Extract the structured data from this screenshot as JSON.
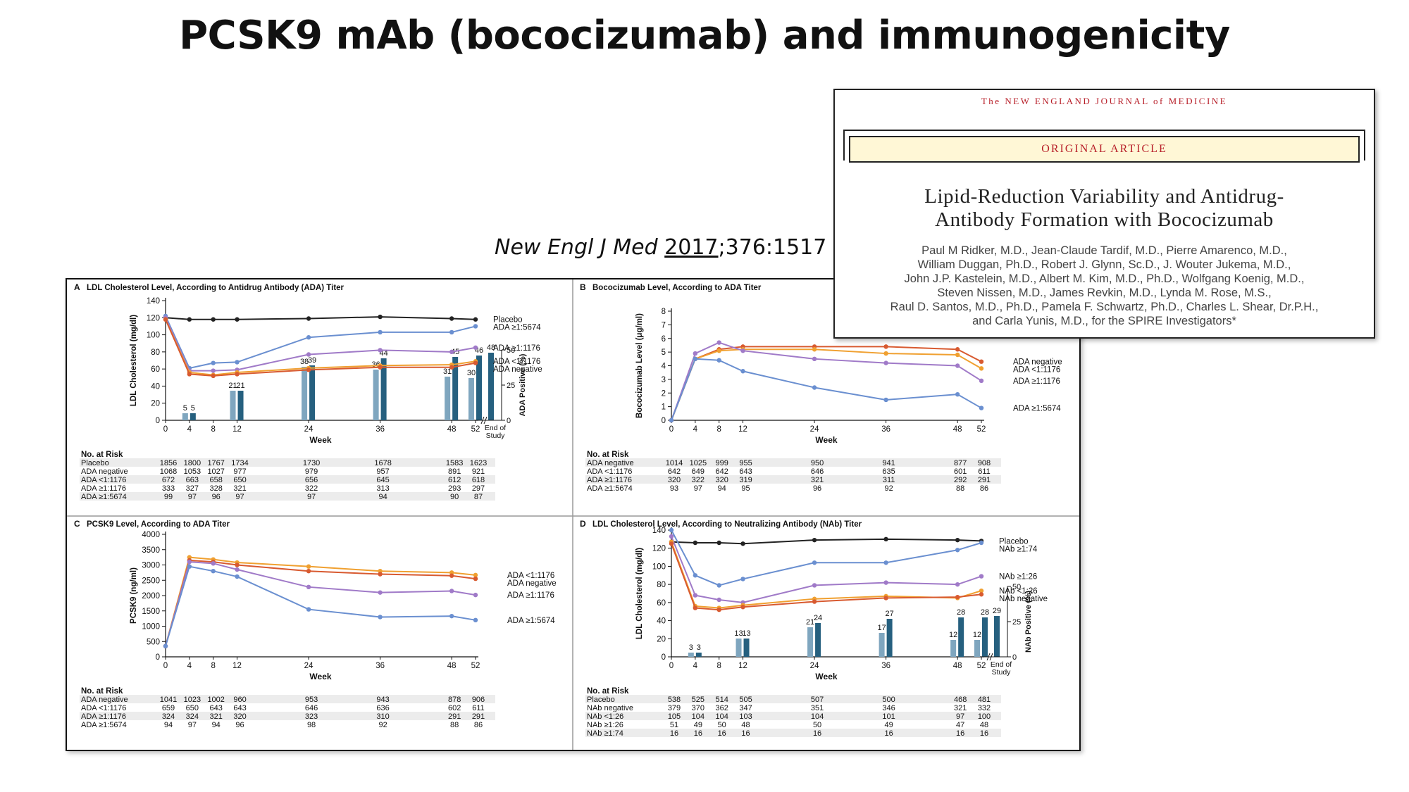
{
  "slide": {
    "title": "PCSK9 mAb (bococizumab) and immunogenicity",
    "citation_journal": "New Engl J Med",
    "citation_year": "2017",
    "citation_rest": ";376:1517"
  },
  "paper": {
    "journal": "The NEW ENGLAND JOURNAL of MEDICINE",
    "section": "ORIGINAL ARTICLE",
    "title_line1": "Lipid-Reduction Variability and Antidrug-",
    "title_line2": "Antibody Formation with Bococizumab",
    "authors": [
      "Paul M Ridker, M.D., Jean-Claude Tardif, M.D., Pierre Amarenco, M.D.,",
      "William Duggan, Ph.D., Robert J. Glynn, Sc.D., J. Wouter Jukema, M.D.,",
      "John J.P. Kastelein, M.D., Albert M. Kim, M.D., Ph.D., Wolfgang Koenig, M.D.,",
      "Steven Nissen, M.D., James Revkin, M.D., Lynda M. Rose, M.S.,",
      "Raul D. Santos, M.D., Ph.D., Pamela F. Schwartz, Ph.D., Charles L. Shear, Dr.P.H.,",
      "and Carla Yunis, M.D., for the SPIRE Investigators*"
    ]
  },
  "colors": {
    "black": "#222222",
    "blue": "#6a8fd0",
    "purple": "#a07ac8",
    "orange": "#f0a030",
    "red": "#d85a30",
    "bar_light": "#7fa6bf",
    "bar_dark": "#26607f"
  },
  "chart_data": [
    {
      "id": "A",
      "type": "line",
      "title": "LDL Cholesterol Level, According to Antidrug Antibody (ADA) Titer",
      "ylabel": "LDL Cholesterol (mg/dl)",
      "xlabel": "Week",
      "ylim": [
        0,
        140
      ],
      "yticks": [
        0,
        20,
        40,
        60,
        80,
        100,
        120,
        140
      ],
      "xticks": [
        "0",
        "4",
        "8",
        "12",
        "24",
        "36",
        "48",
        "52"
      ],
      "x": [
        0,
        4,
        8,
        12,
        24,
        36,
        48,
        52
      ],
      "series": [
        {
          "name": "Placebo",
          "color": "black",
          "values": [
            120,
            118,
            118,
            118,
            119,
            121,
            119,
            118
          ]
        },
        {
          "name": "ADA ≥1:5674",
          "color": "blue",
          "values": [
            122,
            61,
            67,
            68,
            97,
            103,
            103,
            110
          ]
        },
        {
          "name": "ADA ≥1:1176",
          "color": "purple",
          "values": [
            120,
            58,
            58,
            59,
            77,
            82,
            80,
            85
          ]
        },
        {
          "name": "ADA <1:1176",
          "color": "orange",
          "values": [
            118,
            56,
            53,
            56,
            61,
            64,
            65,
            69
          ]
        },
        {
          "name": "ADA negative",
          "color": "red",
          "values": [
            118,
            54,
            52,
            54,
            59,
            62,
            62,
            67
          ]
        }
      ],
      "bars": {
        "ylabel": "ADA Positive (%)",
        "ylim": [
          0,
          50
        ],
        "yticks": [
          0,
          25,
          50
        ],
        "weeks": [
          4,
          12,
          24,
          36,
          48,
          52
        ],
        "light": [
          5,
          21,
          38,
          36,
          31,
          30
        ],
        "dark": [
          5,
          21,
          39,
          44,
          45,
          46
        ],
        "end_of_study": 48,
        "end_label": "End of Study"
      },
      "risk": {
        "header": "No. at Risk",
        "rows": [
          {
            "label": "Placebo",
            "values": [
              "1856",
              "1800",
              "1767",
              "1734",
              "1730",
              "1678",
              "1583",
              "1623"
            ]
          },
          {
            "label": "ADA negative",
            "values": [
              "1068",
              "1053",
              "1027",
              "977",
              "979",
              "957",
              "891",
              "921"
            ]
          },
          {
            "label": "ADA <1:1176",
            "values": [
              "672",
              "663",
              "658",
              "650",
              "656",
              "645",
              "612",
              "618"
            ]
          },
          {
            "label": "ADA ≥1:1176",
            "values": [
              "333",
              "327",
              "328",
              "321",
              "322",
              "313",
              "293",
              "297"
            ]
          },
          {
            "label": "ADA ≥1:5674",
            "values": [
              "99",
              "97",
              "96",
              "97",
              "97",
              "94",
              "90",
              "87"
            ]
          }
        ]
      }
    },
    {
      "id": "B",
      "type": "line",
      "title": "Bococizumab Level, According to ADA Titer",
      "ylabel": "Bococizumab Level (μg/ml)",
      "xlabel": "Week",
      "ylim": [
        0,
        8
      ],
      "yticks": [
        0,
        1,
        2,
        3,
        4,
        5,
        6,
        7,
        8
      ],
      "xticks": [
        "0",
        "4",
        "8",
        "12",
        "24",
        "36",
        "48",
        "52"
      ],
      "x": [
        0,
        4,
        8,
        12,
        24,
        36,
        48,
        52
      ],
      "series": [
        {
          "name": "ADA negative",
          "color": "red",
          "values": [
            0,
            4.5,
            5.2,
            5.4,
            5.4,
            5.4,
            5.2,
            4.3
          ]
        },
        {
          "name": "ADA <1:1176",
          "color": "orange",
          "values": [
            0,
            4.5,
            5.1,
            5.2,
            5.2,
            4.9,
            4.8,
            3.8
          ]
        },
        {
          "name": "ADA ≥1:1176",
          "color": "purple",
          "values": [
            0,
            4.9,
            5.7,
            5.1,
            4.5,
            4.2,
            4.0,
            2.9
          ]
        },
        {
          "name": "ADA ≥1:5674",
          "color": "blue",
          "values": [
            0,
            4.5,
            4.4,
            3.6,
            2.4,
            1.5,
            1.9,
            0.9
          ]
        }
      ],
      "risk": {
        "header": "No. at Risk",
        "rows": [
          {
            "label": "ADA negative",
            "values": [
              "1014",
              "1025",
              "999",
              "955",
              "950",
              "941",
              "877",
              "908"
            ]
          },
          {
            "label": "ADA <1:1176",
            "values": [
              "642",
              "649",
              "642",
              "643",
              "646",
              "635",
              "601",
              "611"
            ]
          },
          {
            "label": "ADA ≥1:1176",
            "values": [
              "320",
              "322",
              "320",
              "319",
              "321",
              "311",
              "292",
              "291"
            ]
          },
          {
            "label": "ADA ≥1:5674",
            "values": [
              "93",
              "97",
              "94",
              "95",
              "96",
              "92",
              "88",
              "86"
            ]
          }
        ]
      }
    },
    {
      "id": "C",
      "type": "line",
      "title": "PCSK9 Level, According to ADA Titer",
      "ylabel": "PCSK9 (ng/ml)",
      "xlabel": "Week",
      "ylim": [
        0,
        4000
      ],
      "yticks": [
        0,
        500,
        1000,
        1500,
        2000,
        2500,
        3000,
        3500,
        4000
      ],
      "xticks": [
        "0",
        "4",
        "8",
        "12",
        "24",
        "36",
        "48",
        "52"
      ],
      "x": [
        0,
        4,
        8,
        12,
        24,
        36,
        48,
        52
      ],
      "series": [
        {
          "name": "ADA <1:1176",
          "color": "orange",
          "values": [
            350,
            3250,
            3180,
            3080,
            2950,
            2800,
            2750,
            2670
          ]
        },
        {
          "name": "ADA negative",
          "color": "red",
          "values": [
            350,
            3150,
            3100,
            3000,
            2800,
            2700,
            2650,
            2550
          ]
        },
        {
          "name": "ADA ≥1:1176",
          "color": "purple",
          "values": [
            350,
            3100,
            3050,
            2850,
            2280,
            2100,
            2150,
            2020
          ]
        },
        {
          "name": "ADA ≥1:5674",
          "color": "blue",
          "values": [
            350,
            2950,
            2800,
            2620,
            1550,
            1300,
            1330,
            1200
          ]
        }
      ],
      "risk": {
        "header": "No. at Risk",
        "rows": [
          {
            "label": "ADA negative",
            "values": [
              "1041",
              "1023",
              "1002",
              "960",
              "953",
              "943",
              "878",
              "906"
            ]
          },
          {
            "label": "ADA <1:1176",
            "values": [
              "659",
              "650",
              "643",
              "643",
              "646",
              "636",
              "602",
              "611"
            ]
          },
          {
            "label": "ADA ≥1:1176",
            "values": [
              "324",
              "324",
              "321",
              "320",
              "323",
              "310",
              "291",
              "291"
            ]
          },
          {
            "label": "ADA ≥1:5674",
            "values": [
              "94",
              "97",
              "94",
              "96",
              "98",
              "92",
              "88",
              "86"
            ]
          }
        ]
      }
    },
    {
      "id": "D",
      "type": "line",
      "title": "LDL Cholesterol Level, According to Neutralizing Antibody (NAb) Titer",
      "ylabel": "LDL Cholesterol (mg/dl)",
      "xlabel": "Week",
      "ylim": [
        0,
        140
      ],
      "yticks": [
        0,
        20,
        40,
        60,
        80,
        100,
        120,
        140
      ],
      "xticks": [
        "0",
        "4",
        "8",
        "12",
        "24",
        "36",
        "48",
        "52"
      ],
      "x": [
        0,
        4,
        8,
        12,
        24,
        36,
        48,
        52
      ],
      "series": [
        {
          "name": "Placebo",
          "color": "black",
          "values": [
            127,
            126,
            126,
            125,
            129,
            130,
            129,
            128
          ]
        },
        {
          "name": "NAb ≥1:74",
          "color": "blue",
          "values": [
            140,
            90,
            79,
            86,
            104,
            104,
            118,
            126
          ]
        },
        {
          "name": "NAb ≥1:26",
          "color": "purple",
          "values": [
            133,
            68,
            63,
            60,
            79,
            82,
            80,
            89
          ]
        },
        {
          "name": "NAb <1:26",
          "color": "orange",
          "values": [
            127,
            56,
            54,
            57,
            64,
            67,
            65,
            73
          ]
        },
        {
          "name": "NAb negative",
          "color": "red",
          "values": [
            125,
            54,
            52,
            55,
            61,
            65,
            66,
            69
          ]
        }
      ],
      "bars": {
        "ylabel": "NAb Positive (%)",
        "ylim": [
          0,
          50
        ],
        "yticks": [
          0,
          25,
          50
        ],
        "weeks": [
          4,
          12,
          24,
          36,
          48,
          52
        ],
        "light": [
          3,
          13,
          21,
          17,
          12,
          12
        ],
        "dark": [
          3,
          13,
          24,
          27,
          28,
          28
        ],
        "end_of_study": 29,
        "end_label": "End of Study"
      },
      "risk": {
        "header": "No. at Risk",
        "rows": [
          {
            "label": "Placebo",
            "values": [
              "538",
              "525",
              "514",
              "505",
              "507",
              "500",
              "468",
              "481"
            ]
          },
          {
            "label": "NAb negative",
            "values": [
              "379",
              "370",
              "362",
              "347",
              "351",
              "346",
              "321",
              "332"
            ]
          },
          {
            "label": "NAb <1:26",
            "values": [
              "105",
              "104",
              "104",
              "103",
              "104",
              "101",
              "97",
              "100"
            ]
          },
          {
            "label": "NAb ≥1:26",
            "values": [
              "51",
              "49",
              "50",
              "48",
              "50",
              "49",
              "47",
              "48"
            ]
          },
          {
            "label": "NAb ≥1:74",
            "values": [
              "16",
              "16",
              "16",
              "16",
              "16",
              "16",
              "16",
              "16"
            ]
          }
        ]
      }
    }
  ]
}
